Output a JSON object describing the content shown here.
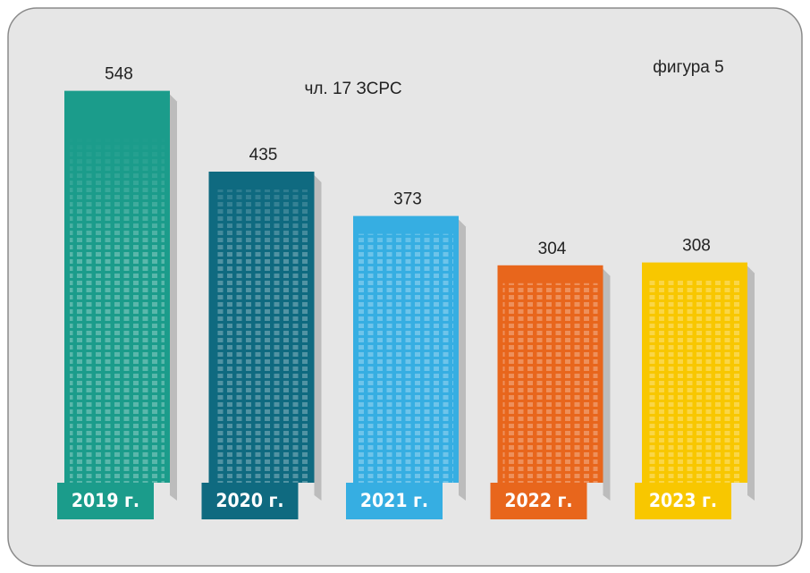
{
  "chart_data": {
    "type": "bar",
    "title": "чл. 17 ЗСРС",
    "annotation": "фигура 5",
    "categories": [
      "2019 г.",
      "2020 г.",
      "2021 г.",
      "2022 г.",
      "2023 г."
    ],
    "values": [
      548,
      435,
      373,
      304,
      308
    ],
    "colors": [
      "#1b9c8b",
      "#0f6a80",
      "#36aee2",
      "#e8661c",
      "#f8c700"
    ]
  }
}
